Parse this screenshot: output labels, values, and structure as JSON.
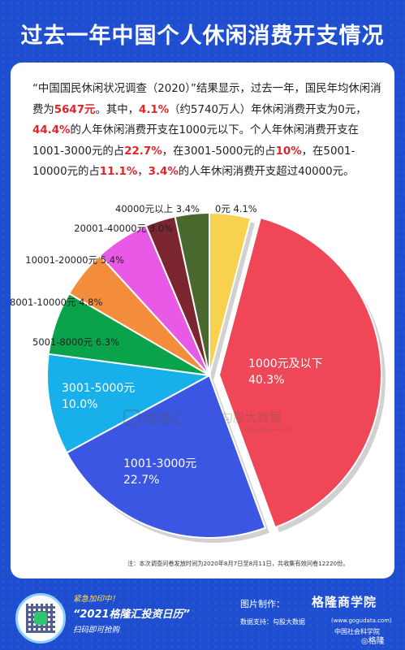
{
  "title": "过去一年中国个人休闲消费开支情况",
  "intro": {
    "p1": "“中国国民休闲状况调查（2020）”结果显示，过去一年，国民年均休闲消费为",
    "h1": "5647元",
    "p2": "。其中，",
    "h2": "4.1%",
    "p3": "（约5740万人）年休闲消费开支为0元，",
    "h3": "44.4%",
    "p4": "的人年休闲消费开支在1000元以下。个人年休闲消费开支在1001-3000元的占",
    "h4": "22.7%",
    "p5": "，在3001-5000元的占",
    "h5": "10%",
    "p6": "，在5001-10000元的占",
    "h6": "11.1%",
    "p7": "，",
    "h7": "3.4%",
    "p8": "的人年休闲消费开支超过40000元。"
  },
  "chart_data": {
    "type": "pie",
    "slices": [
      {
        "label": "0元",
        "value": 4.1,
        "pct": "4.1%",
        "color": "#f8d24e"
      },
      {
        "label": "1000元及以下",
        "value": 40.3,
        "pct": "40.3%",
        "color": "#ef4757"
      },
      {
        "label": "1001-3000元",
        "value": 22.7,
        "pct": "22.7%",
        "color": "#3a56e2"
      },
      {
        "label": "3001-5000元",
        "value": 10.0,
        "pct": "10.0%",
        "color": "#18b0ea"
      },
      {
        "label": "5001-8000元",
        "value": 6.3,
        "pct": "6.3%",
        "color": "#0aa24a"
      },
      {
        "label": "8001-10000元",
        "value": 4.8,
        "pct": "4.8%",
        "color": "#f38d3c"
      },
      {
        "label": "10001-20000元",
        "value": 5.4,
        "pct": "5.4%",
        "color": "#e85ae6"
      },
      {
        "label": "20001-40000元",
        "value": 3.0,
        "pct": "3.0%",
        "color": "#7a2530"
      },
      {
        "label": "40000元以上",
        "value": 3.4,
        "pct": "3.4%",
        "color": "#49682e"
      }
    ],
    "start_angle_deg": 0,
    "exploded": "1000元及以下"
  },
  "watermark": {
    "left": "格隆汇",
    "right": "勾股大数据",
    "url": "www.gogudata.com"
  },
  "note": "注：本次调查问卷发放时间为2020年8月7日至8月11日，共收集有效问卷12220份。",
  "footer": {
    "promo1": "紧急加印中！",
    "promo2": "“2021格隆汇投资日历”",
    "promo3": "扫码即可抢购",
    "qr_text": "2021",
    "maker": "图片制作：",
    "brand": "格隆商学院",
    "source": "数据支持：勾股大数据",
    "site": "(www.gogudata.com)",
    "cass": "中国社会科学院",
    "weibo": "格隆"
  }
}
